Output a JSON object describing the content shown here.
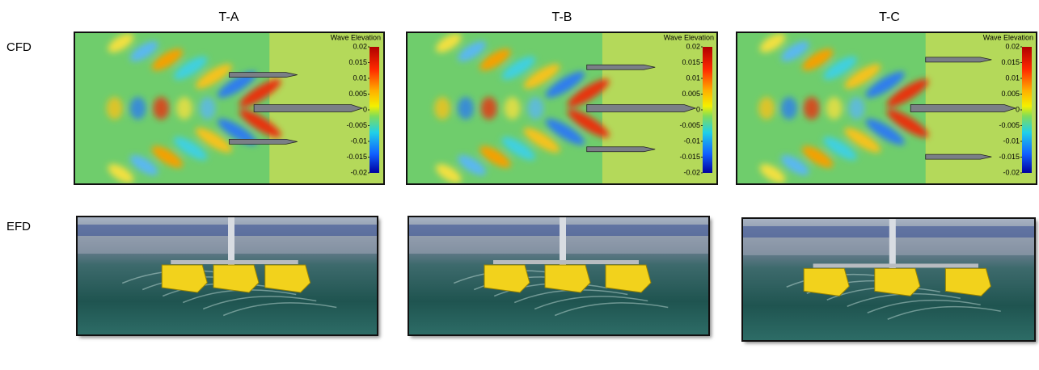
{
  "columns": [
    "T-A",
    "T-B",
    "T-C"
  ],
  "rows": [
    "CFD",
    "EFD"
  ],
  "colorbar": {
    "title": "Wave Elevation",
    "lim": [
      -0.02,
      0.02
    ],
    "ticks": [
      0.02,
      0.015,
      0.01,
      0.005,
      0,
      -0.005,
      -0.01,
      -0.015,
      -0.02
    ]
  }
}
